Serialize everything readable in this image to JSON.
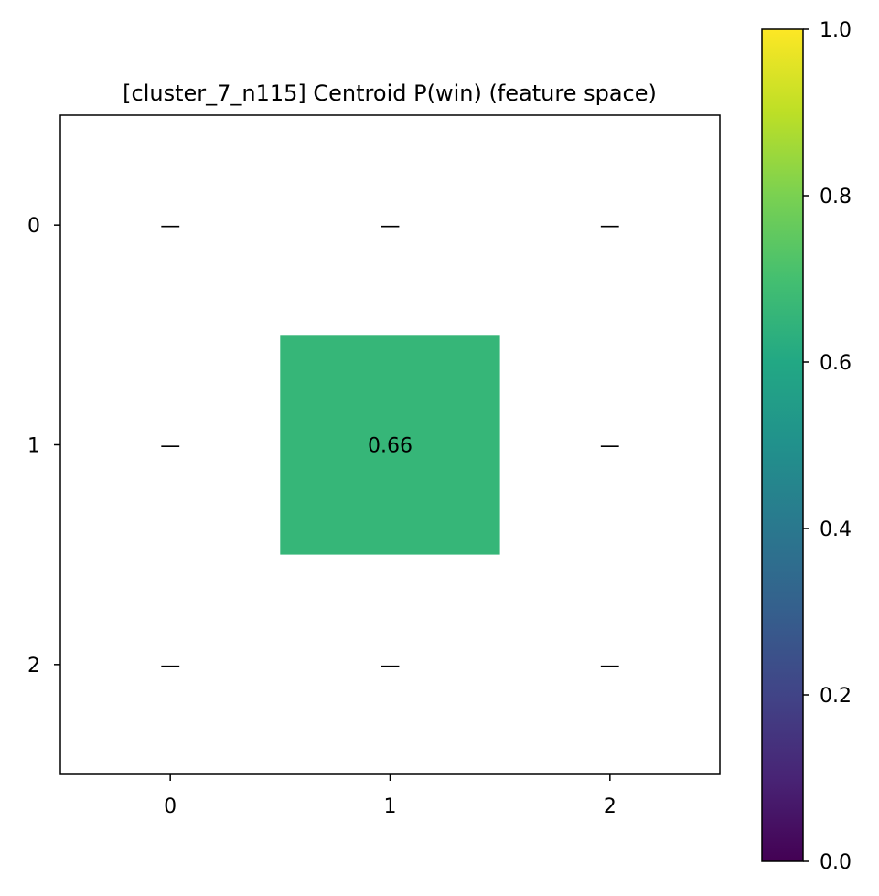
{
  "chart_data": {
    "type": "heatmap",
    "title": "[cluster_7_n115] Centroid P(win) (feature space)",
    "x_tick_labels": [
      "0",
      "1",
      "2"
    ],
    "y_tick_labels": [
      "0",
      "1",
      "2"
    ],
    "values": [
      [
        null,
        null,
        null
      ],
      [
        null,
        0.66,
        null
      ],
      [
        null,
        null,
        null
      ]
    ],
    "cell_labels": [
      [
        "—",
        "—",
        "—"
      ],
      [
        "—",
        "0.66",
        "—"
      ],
      [
        "—",
        "—",
        "—"
      ]
    ],
    "colorscale": "viridis",
    "vmin": 0.0,
    "vmax": 1.0,
    "colorbar_ticks": [
      0.0,
      0.2,
      0.4,
      0.6,
      0.8,
      1.0
    ],
    "colorbar_tick_labels": [
      "0.0",
      "0.2",
      "0.4",
      "0.6",
      "0.8",
      "1.0"
    ],
    "grid": false
  }
}
